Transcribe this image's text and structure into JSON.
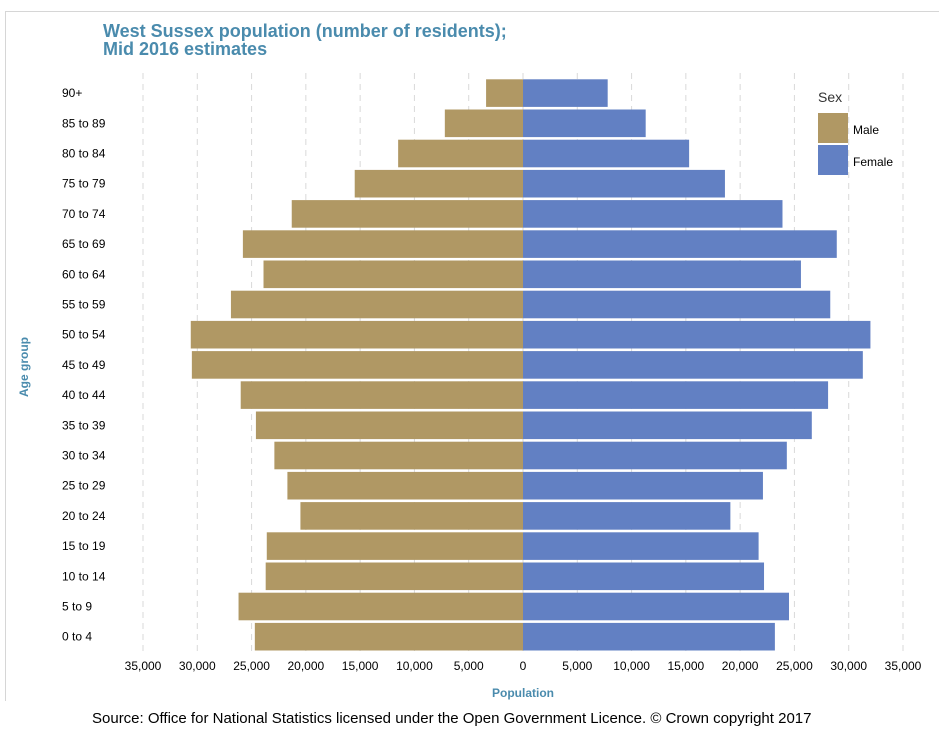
{
  "header": {
    "title_line1": "West Sussex population (number of residents);",
    "title_line2": "Mid 2016 estimates"
  },
  "footer": {
    "source": "Source: Office for National Statistics licensed under the Open Government Licence. © Crown copyright 2017"
  },
  "colors": {
    "male": "#b09864",
    "female": "#6280c3",
    "title": "#4a8bad",
    "grid": "#d9d9d9"
  },
  "chart_data": {
    "type": "bar",
    "orientation": "horizontal",
    "layout": "population-pyramid",
    "title": "West Sussex population (number of residents); Mid 2016 estimates",
    "xlabel": "Population",
    "ylabel": "Age group",
    "xlim": [
      -35000,
      35000
    ],
    "x_ticks": [
      -35000,
      -30000,
      -25000,
      -20000,
      -15000,
      -10000,
      -5000,
      0,
      5000,
      10000,
      15000,
      20000,
      25000,
      30000,
      35000
    ],
    "x_tick_labels": [
      "35,000",
      "30,000",
      "25,000",
      "20,000",
      "15,000",
      "10,000",
      "5,000",
      "0",
      "5,000",
      "10,000",
      "15,000",
      "20,000",
      "25,000",
      "30,000",
      "35,000"
    ],
    "grid": "vertical dashed",
    "legend": {
      "title": "Sex",
      "position": "top-right"
    },
    "categories": [
      "90+",
      "85 to 89",
      "80 to 84",
      "75 to 79",
      "70 to 74",
      "65 to 69",
      "60 to 64",
      "55 to 59",
      "50 to 54",
      "45 to 49",
      "40 to 44",
      "35 to 39",
      "30 to 34",
      "25 to 29",
      "20 to 24",
      "15 to 19",
      "10 to 14",
      "5 to 9",
      "0 to 4"
    ],
    "series": [
      {
        "name": "Male",
        "values": [
          3400,
          7200,
          11500,
          15500,
          21300,
          25800,
          23900,
          26900,
          30600,
          30500,
          26000,
          24600,
          22900,
          21700,
          20500,
          23600,
          23700,
          26200,
          24700
        ]
      },
      {
        "name": "Female",
        "values": [
          7800,
          11300,
          15300,
          18600,
          23900,
          28900,
          25600,
          28300,
          32000,
          31300,
          28100,
          26600,
          24300,
          22100,
          19100,
          21700,
          22200,
          24500,
          23200
        ]
      }
    ]
  }
}
